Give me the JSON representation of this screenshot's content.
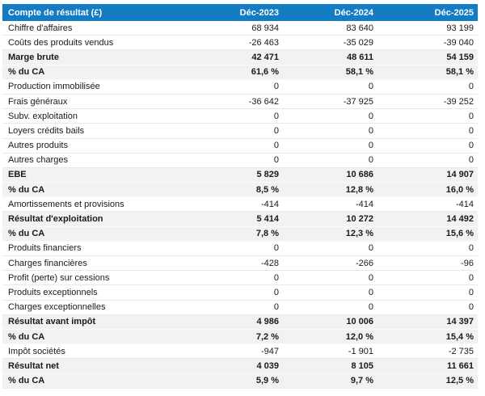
{
  "chart_data": {
    "type": "table",
    "title": "Compte de résultat (£)",
    "header": {
      "label": "Compte de résultat (£)",
      "columns": [
        "Déc-2023",
        "Déc-2024",
        "Déc-2025"
      ]
    },
    "rows": [
      {
        "label": "Chiffre d'affaires",
        "values": [
          "68 934",
          "83 640",
          "93 199"
        ],
        "highlight": false
      },
      {
        "label": "Coûts des produits vendus",
        "values": [
          "-26 463",
          "-35 029",
          "-39 040"
        ],
        "highlight": false
      },
      {
        "label": "Marge brute",
        "values": [
          "42 471",
          "48 611",
          "54 159"
        ],
        "highlight": true
      },
      {
        "label": "% du CA",
        "values": [
          "61,6 %",
          "58,1 %",
          "58,1 %"
        ],
        "highlight": true
      },
      {
        "label": "Production immobilisée",
        "values": [
          "0",
          "0",
          "0"
        ],
        "highlight": false
      },
      {
        "label": "Frais généraux",
        "values": [
          "-36 642",
          "-37 925",
          "-39 252"
        ],
        "highlight": false
      },
      {
        "label": "Subv. exploitation",
        "values": [
          "0",
          "0",
          "0"
        ],
        "highlight": false
      },
      {
        "label": "Loyers crédits bails",
        "values": [
          "0",
          "0",
          "0"
        ],
        "highlight": false
      },
      {
        "label": "Autres produits",
        "values": [
          "0",
          "0",
          "0"
        ],
        "highlight": false
      },
      {
        "label": "Autres charges",
        "values": [
          "0",
          "0",
          "0"
        ],
        "highlight": false
      },
      {
        "label": "EBE",
        "values": [
          "5 829",
          "10 686",
          "14 907"
        ],
        "highlight": true
      },
      {
        "label": "% du CA",
        "values": [
          "8,5 %",
          "12,8 %",
          "16,0 %"
        ],
        "highlight": true
      },
      {
        "label": "Amortissements et provisions",
        "values": [
          "-414",
          "-414",
          "-414"
        ],
        "highlight": false
      },
      {
        "label": "Résultat d'exploitation",
        "values": [
          "5 414",
          "10 272",
          "14 492"
        ],
        "highlight": true
      },
      {
        "label": "% du CA",
        "values": [
          "7,8 %",
          "12,3 %",
          "15,6 %"
        ],
        "highlight": true
      },
      {
        "label": "Produits financiers",
        "values": [
          "0",
          "0",
          "0"
        ],
        "highlight": false
      },
      {
        "label": "Charges financières",
        "values": [
          "-428",
          "-266",
          "-96"
        ],
        "highlight": false
      },
      {
        "label": "Profit (perte) sur cessions",
        "values": [
          "0",
          "0",
          "0"
        ],
        "highlight": false
      },
      {
        "label": "Produits exceptionnels",
        "values": [
          "0",
          "0",
          "0"
        ],
        "highlight": false
      },
      {
        "label": "Charges exceptionnelles",
        "values": [
          "0",
          "0",
          "0"
        ],
        "highlight": false
      },
      {
        "label": "Résultat avant impôt",
        "values": [
          "4 986",
          "10 006",
          "14 397"
        ],
        "highlight": true
      },
      {
        "label": "% du CA",
        "values": [
          "7,2 %",
          "12,0 %",
          "15,4 %"
        ],
        "highlight": true
      },
      {
        "label": "Impôt sociétés",
        "values": [
          "-947",
          "-1 901",
          "-2 735"
        ],
        "highlight": false
      },
      {
        "label": "Résultat net",
        "values": [
          "4 039",
          "8 105",
          "11 661"
        ],
        "highlight": true
      },
      {
        "label": "% du CA",
        "values": [
          "5,9 %",
          "9,7 %",
          "12,5 %"
        ],
        "highlight": true
      }
    ]
  },
  "colors": {
    "header_bg": "#147cc2",
    "header_text": "#ffffff",
    "highlight_row_bg": "#f2f2f2",
    "row_text": "#1a1a1a",
    "row_border": "#e9e9e9",
    "page_bg": "#ffffff"
  }
}
